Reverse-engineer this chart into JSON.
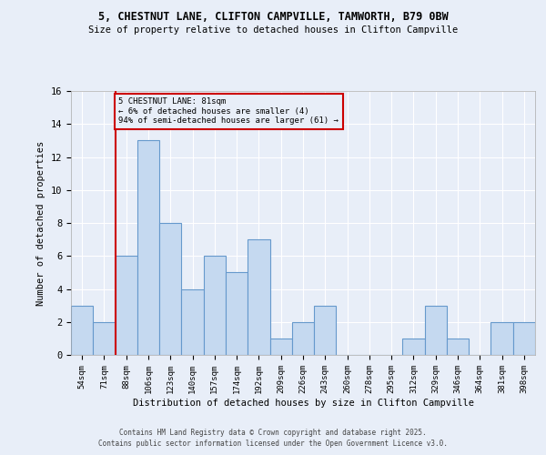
{
  "title1": "5, CHESTNUT LANE, CLIFTON CAMPVILLE, TAMWORTH, B79 0BW",
  "title2": "Size of property relative to detached houses in Clifton Campville",
  "xlabel": "Distribution of detached houses by size in Clifton Campville",
  "ylabel": "Number of detached properties",
  "categories": [
    "54sqm",
    "71sqm",
    "88sqm",
    "106sqm",
    "123sqm",
    "140sqm",
    "157sqm",
    "174sqm",
    "192sqm",
    "209sqm",
    "226sqm",
    "243sqm",
    "260sqm",
    "278sqm",
    "295sqm",
    "312sqm",
    "329sqm",
    "346sqm",
    "364sqm",
    "381sqm",
    "398sqm"
  ],
  "values": [
    3,
    2,
    6,
    13,
    8,
    4,
    6,
    5,
    7,
    1,
    2,
    3,
    0,
    0,
    0,
    1,
    3,
    1,
    0,
    2,
    2
  ],
  "bar_color": "#c5d9f0",
  "bar_edge_color": "#6699cc",
  "annotation_title": "5 CHESTNUT LANE: 81sqm",
  "annotation_line1": "← 6% of detached houses are smaller (4)",
  "annotation_line2": "94% of semi-detached houses are larger (61) →",
  "annotation_box_color": "#cc0000",
  "ylim": [
    0,
    16
  ],
  "yticks": [
    0,
    2,
    4,
    6,
    8,
    10,
    12,
    14,
    16
  ],
  "footer1": "Contains HM Land Registry data © Crown copyright and database right 2025.",
  "footer2": "Contains public sector information licensed under the Open Government Licence v3.0.",
  "bg_color": "#e8eef8",
  "grid_color": "#ffffff"
}
